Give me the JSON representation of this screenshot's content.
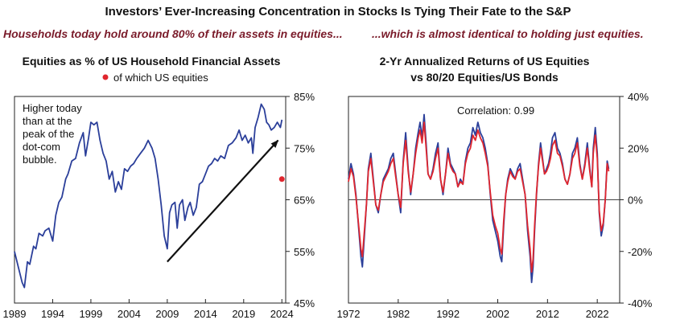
{
  "title": "Investors’ Ever-Increasing Concentration in Stocks Is Tying Their Fate to the S&P",
  "subtitle_left": "Households today hold around 80% of their assets in equities...",
  "subtitle_right": "...which is almost identical to holding just equities.",
  "colors": {
    "blue": "#2b3f9a",
    "red": "#e0262e",
    "maroon": "#7a1b2a",
    "text": "#111111"
  },
  "chart_data": [
    {
      "type": "line",
      "title": "Equities as % of US Household Financial Assets",
      "legend": [
        {
          "label": "of which US equities",
          "marker": "dot",
          "color": "#e0262e"
        }
      ],
      "annotation": [
        "Higher today",
        "than at the",
        "peak of the",
        "dot-com",
        "bubble."
      ],
      "xlabel": "",
      "ylabel": "",
      "xlim": [
        1989,
        2024.5
      ],
      "ylim": [
        45,
        85
      ],
      "x_ticks": [
        1989,
        1994,
        1999,
        2004,
        2009,
        2014,
        2019,
        2024
      ],
      "y_ticks": [
        45,
        55,
        65,
        75,
        85
      ],
      "y_tick_labels": [
        "45%",
        "55%",
        "65%",
        "75%",
        "85%"
      ],
      "y_axis_side": "right",
      "arrow": {
        "from": [
          2009,
          53
        ],
        "to": [
          2023.5,
          76.5
        ]
      },
      "series": [
        {
          "color": "#2b3f9a",
          "x": [
            1989.0,
            1989.5,
            1990.0,
            1990.3,
            1990.7,
            1991.0,
            1991.5,
            1991.8,
            1992.2,
            1992.7,
            1993.0,
            1993.5,
            1994.0,
            1994.4,
            1994.8,
            1995.2,
            1995.7,
            1996.0,
            1996.5,
            1997.0,
            1997.5,
            1998.0,
            1998.3,
            1998.7,
            1999.0,
            1999.4,
            1999.8,
            2000.2,
            2000.6,
            2001.0,
            2001.4,
            2001.8,
            2002.2,
            2002.6,
            2003.0,
            2003.4,
            2003.8,
            2004.2,
            2004.6,
            2005.0,
            2005.5,
            2006.0,
            2006.5,
            2007.0,
            2007.4,
            2007.8,
            2008.2,
            2008.6,
            2009.0,
            2009.3,
            2009.6,
            2010.0,
            2010.3,
            2010.6,
            2011.0,
            2011.3,
            2011.7,
            2012.0,
            2012.4,
            2012.8,
            2013.2,
            2013.6,
            2014.0,
            2014.4,
            2014.8,
            2015.2,
            2015.6,
            2016.0,
            2016.5,
            2017.0,
            2017.5,
            2018.0,
            2018.4,
            2018.8,
            2019.2,
            2019.6,
            2020.0,
            2020.2,
            2020.5,
            2020.9,
            2021.3,
            2021.7,
            2022.0,
            2022.3,
            2022.6,
            2023.0,
            2023.4,
            2023.8,
            2024.0
          ],
          "y": [
            55.0,
            52.0,
            49.0,
            48.0,
            53.0,
            52.5,
            56.0,
            55.5,
            58.5,
            58.0,
            59.0,
            59.5,
            57.0,
            62.0,
            64.5,
            65.5,
            69.0,
            70.0,
            72.5,
            73.0,
            76.0,
            78.0,
            73.5,
            77.0,
            80.0,
            79.5,
            80.0,
            76.5,
            74.0,
            72.5,
            69.0,
            70.5,
            66.5,
            68.5,
            67.0,
            71.0,
            70.5,
            71.5,
            72.0,
            73.0,
            74.0,
            75.0,
            76.5,
            75.0,
            73.0,
            69.0,
            64.0,
            58.0,
            55.5,
            62.5,
            64.0,
            64.5,
            59.5,
            64.0,
            65.0,
            61.0,
            63.5,
            64.5,
            62.0,
            63.5,
            68.0,
            68.5,
            70.0,
            71.5,
            72.0,
            73.0,
            72.5,
            73.5,
            73.0,
            75.5,
            76.0,
            77.0,
            78.5,
            76.5,
            77.5,
            76.0,
            77.0,
            74.0,
            79.0,
            81.0,
            83.5,
            82.5,
            80.0,
            79.5,
            78.5,
            79.0,
            80.0,
            79.0,
            80.5
          ]
        }
      ],
      "markers": [
        {
          "x": 2024,
          "y": 69,
          "color": "#e0262e"
        }
      ]
    },
    {
      "type": "line",
      "title": "2-Yr Annualized Returns of US Equities vs 80/20 Equities/US Bonds",
      "annotation": [
        "Correlation: 0.99"
      ],
      "xlabel": "",
      "ylabel": "",
      "xlim": [
        1972,
        2026.5
      ],
      "ylim": [
        -40,
        40
      ],
      "x_ticks": [
        1972,
        1982,
        1992,
        2002,
        2012,
        2022
      ],
      "y_ticks": [
        -40,
        -20,
        0,
        20,
        40
      ],
      "y_tick_labels": [
        "-40%",
        "-20%",
        "0%",
        "20%",
        "40%"
      ],
      "y_axis_side": "right",
      "zero_line": true,
      "series": [
        {
          "name": "US Equities",
          "color": "#2b3f9a",
          "x": [
            1972.0,
            1972.5,
            1973.0,
            1973.5,
            1974.0,
            1974.5,
            1974.8,
            1975.2,
            1975.6,
            1976.0,
            1976.5,
            1977.0,
            1977.5,
            1978.0,
            1978.5,
            1979.0,
            1979.5,
            1980.0,
            1980.5,
            1981.0,
            1981.5,
            1982.0,
            1982.5,
            1983.0,
            1983.5,
            1984.0,
            1984.5,
            1985.0,
            1985.5,
            1986.0,
            1986.4,
            1986.8,
            1987.2,
            1987.6,
            1988.0,
            1988.5,
            1989.0,
            1989.5,
            1990.0,
            1990.5,
            1991.0,
            1991.5,
            1992.0,
            1992.5,
            1993.0,
            1993.5,
            1994.0,
            1994.5,
            1995.0,
            1995.5,
            1996.0,
            1996.5,
            1997.0,
            1997.5,
            1998.0,
            1998.5,
            1999.0,
            1999.5,
            2000.0,
            2000.5,
            2001.0,
            2001.5,
            2002.0,
            2002.5,
            2002.8,
            2003.2,
            2003.6,
            2004.0,
            2004.5,
            2005.0,
            2005.5,
            2006.0,
            2006.5,
            2007.0,
            2007.5,
            2008.0,
            2008.5,
            2008.8,
            2009.1,
            2009.4,
            2009.8,
            2010.2,
            2010.6,
            2011.0,
            2011.4,
            2011.8,
            2012.2,
            2012.6,
            2013.0,
            2013.5,
            2014.0,
            2014.5,
            2015.0,
            2015.5,
            2016.0,
            2016.5,
            2017.0,
            2017.5,
            2018.0,
            2018.5,
            2019.0,
            2019.5,
            2020.0,
            2020.5,
            2020.9,
            2021.2,
            2021.6,
            2022.0,
            2022.4,
            2022.8,
            2023.2,
            2023.6,
            2024.0,
            2024.3
          ],
          "y": [
            8,
            14,
            10,
            2,
            -10,
            -22,
            -26,
            -14,
            -2,
            12,
            18,
            8,
            -2,
            -5,
            2,
            8,
            10,
            12,
            16,
            18,
            10,
            2,
            -5,
            15,
            26,
            12,
            2,
            10,
            20,
            26,
            30,
            24,
            33,
            22,
            10,
            8,
            12,
            18,
            22,
            8,
            2,
            10,
            20,
            14,
            12,
            10,
            5,
            8,
            6,
            15,
            20,
            22,
            28,
            25,
            30,
            26,
            24,
            20,
            14,
            2,
            -8,
            -12,
            -16,
            -22,
            -24,
            -10,
            2,
            8,
            12,
            10,
            8,
            12,
            14,
            8,
            2,
            -12,
            -22,
            -32,
            -26,
            -12,
            2,
            14,
            22,
            16,
            10,
            12,
            14,
            18,
            24,
            26,
            20,
            18,
            14,
            8,
            6,
            10,
            18,
            20,
            24,
            14,
            8,
            14,
            22,
            12,
            5,
            20,
            28,
            18,
            -5,
            -14,
            -10,
            0,
            15,
            12
          ]
        },
        {
          "name": "80/20 Equities/US Bonds",
          "color": "#e0262e",
          "x": [
            1972.0,
            1972.5,
            1973.0,
            1973.5,
            1974.0,
            1974.5,
            1974.8,
            1975.2,
            1975.6,
            1976.0,
            1976.5,
            1977.0,
            1977.5,
            1978.0,
            1978.5,
            1979.0,
            1979.5,
            1980.0,
            1980.5,
            1981.0,
            1981.5,
            1982.0,
            1982.5,
            1983.0,
            1983.5,
            1984.0,
            1984.5,
            1985.0,
            1985.5,
            1986.0,
            1986.4,
            1986.8,
            1987.2,
            1987.6,
            1988.0,
            1988.5,
            1989.0,
            1989.5,
            1990.0,
            1990.5,
            1991.0,
            1991.5,
            1992.0,
            1992.5,
            1993.0,
            1993.5,
            1994.0,
            1994.5,
            1995.0,
            1995.5,
            1996.0,
            1996.5,
            1997.0,
            1997.5,
            1998.0,
            1998.5,
            1999.0,
            1999.5,
            2000.0,
            2000.5,
            2001.0,
            2001.5,
            2002.0,
            2002.5,
            2002.8,
            2003.2,
            2003.6,
            2004.0,
            2004.5,
            2005.0,
            2005.5,
            2006.0,
            2006.5,
            2007.0,
            2007.5,
            2008.0,
            2008.5,
            2008.8,
            2009.1,
            2009.4,
            2009.8,
            2010.2,
            2010.6,
            2011.0,
            2011.4,
            2011.8,
            2012.2,
            2012.6,
            2013.0,
            2013.5,
            2014.0,
            2014.5,
            2015.0,
            2015.5,
            2016.0,
            2016.5,
            2017.0,
            2017.5,
            2018.0,
            2018.5,
            2019.0,
            2019.5,
            2020.0,
            2020.5,
            2020.9,
            2021.2,
            2021.6,
            2022.0,
            2022.4,
            2022.8,
            2023.2,
            2023.6,
            2024.0,
            2024.3
          ],
          "y": [
            7,
            12,
            9,
            1,
            -9,
            -19,
            -22,
            -12,
            -2,
            11,
            16,
            7,
            -2,
            -4,
            2,
            7,
            9,
            11,
            14,
            16,
            9,
            2,
            -3,
            14,
            23,
            11,
            3,
            10,
            18,
            24,
            27,
            22,
            30,
            20,
            10,
            8,
            11,
            16,
            20,
            8,
            3,
            10,
            18,
            13,
            11,
            10,
            5,
            7,
            6,
            14,
            18,
            20,
            25,
            23,
            27,
            24,
            22,
            18,
            13,
            3,
            -6,
            -10,
            -13,
            -19,
            -21,
            -8,
            2,
            7,
            11,
            9,
            8,
            11,
            12,
            7,
            2,
            -10,
            -19,
            -28,
            -23,
            -10,
            3,
            13,
            20,
            15,
            10,
            11,
            13,
            16,
            21,
            23,
            18,
            17,
            13,
            8,
            6,
            10,
            16,
            18,
            22,
            13,
            8,
            13,
            20,
            11,
            5,
            18,
            25,
            16,
            -4,
            -12,
            -9,
            0,
            14,
            11
          ]
        }
      ]
    }
  ]
}
